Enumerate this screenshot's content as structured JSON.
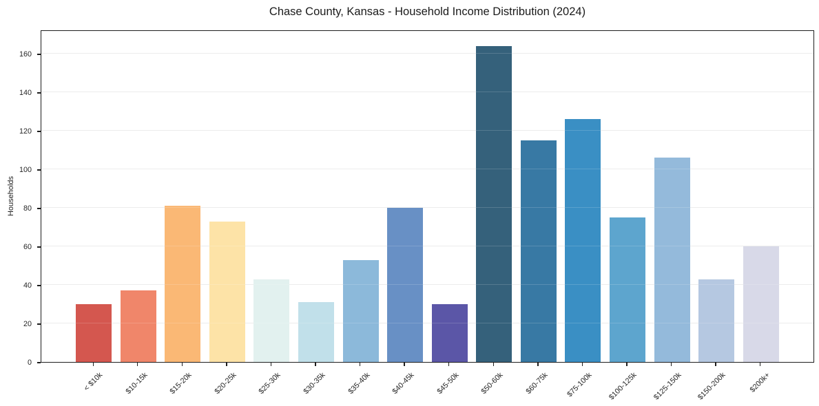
{
  "chart_data": {
    "type": "bar",
    "title": "Chase County, Kansas - Household Income Distribution (2024)",
    "xlabel": "",
    "ylabel": "Households",
    "categories": [
      "< $10k",
      "$10-15k",
      "$15-20k",
      "$20-25k",
      "$25-30k",
      "$30-35k",
      "$35-40k",
      "$40-45k",
      "$45-50k",
      "$50-60k",
      "$60-75k",
      "$75-100k",
      "$100-125k",
      "$125-150k",
      "$150-200k",
      "$200k+"
    ],
    "values": [
      30,
      37,
      81,
      73,
      43,
      31,
      53,
      80,
      30,
      164,
      115,
      126,
      75,
      106,
      43,
      60
    ],
    "bar_colors": [
      "#d4574f",
      "#f0866a",
      "#fab875",
      "#fde3a7",
      "#e2f1ef",
      "#c1e0ea",
      "#8cb9da",
      "#6890c5",
      "#5b56a7",
      "#35617b",
      "#3879a4",
      "#3a8fc4",
      "#5da5ce",
      "#94badb",
      "#b5c8e1",
      "#d8d9e8"
    ],
    "yticks": [
      0,
      20,
      40,
      60,
      80,
      100,
      120,
      140,
      160
    ],
    "ylim": [
      0,
      171.5
    ],
    "grid": "horizontal",
    "legend": "none",
    "background_color": "#ffffff",
    "grid_color": "#e9e9e9",
    "spine_color": "#1c1c1c",
    "tick_label_color": "#262626",
    "x_tick_rotation": 45
  }
}
